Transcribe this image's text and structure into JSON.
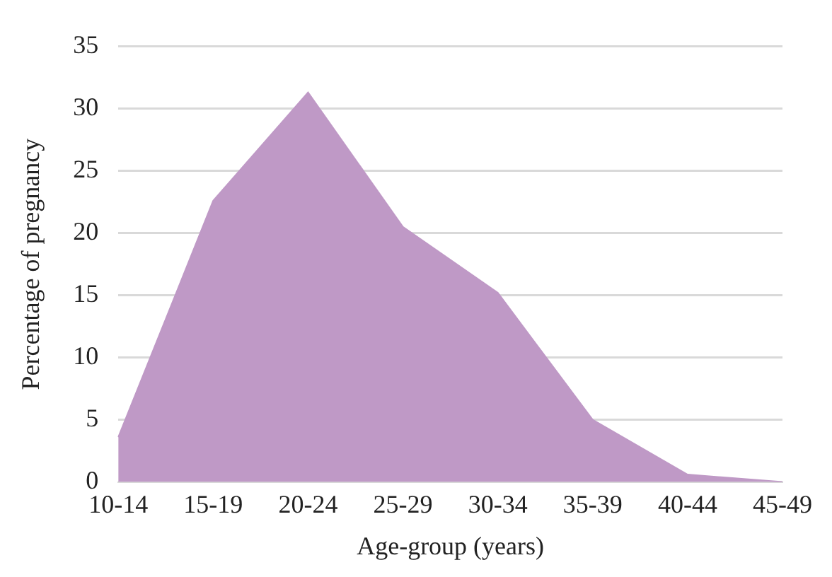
{
  "chart_data": {
    "type": "area",
    "xlabel": "Age-group (years)",
    "ylabel": "Percentage of pregnancy",
    "categories": [
      "10-14",
      "15-19",
      "20-24",
      "25-29",
      "30-34",
      "35-39",
      "40-44",
      "45-49"
    ],
    "series": [
      {
        "color": "#bf99c6",
        "values": [
          3.6,
          22.6,
          31.3,
          20.5,
          15.2,
          5,
          0.6,
          0
        ]
      }
    ],
    "ylim": [
      0,
      35
    ],
    "yticks": [
      0,
      5,
      10,
      15,
      20,
      25,
      30,
      35
    ],
    "grid": "y",
    "legend": false
  }
}
